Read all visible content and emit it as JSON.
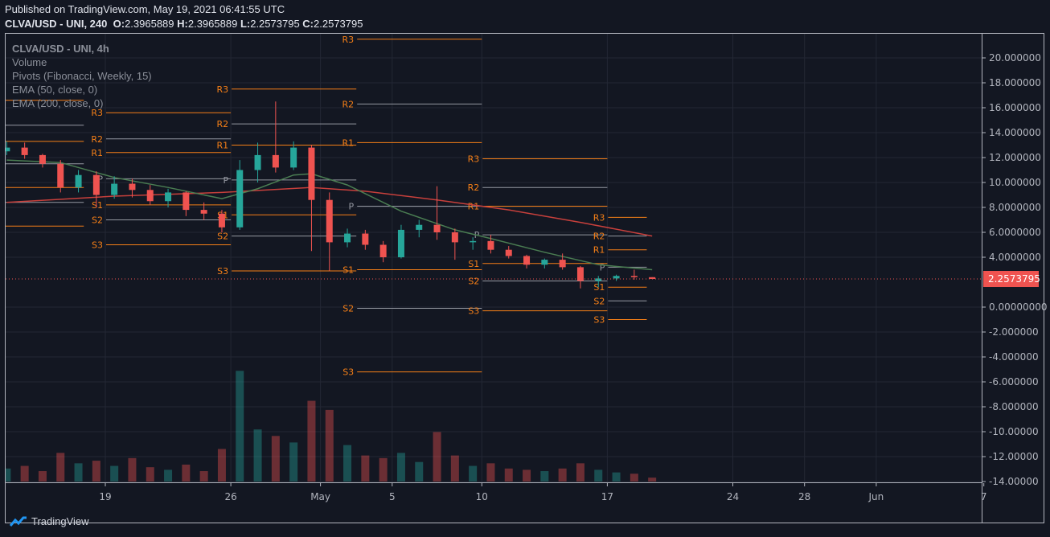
{
  "header": {
    "published": "Published on TradingView.com, May 19, 2021 06:41:55 UTC",
    "symbol": "CLVA/USD - UNI, 240",
    "o_label": "O:",
    "o": "2.3965889",
    "h_label": "H:",
    "h": "2.3965889",
    "l_label": "L:",
    "l": "2.2573795",
    "c_label": "C:",
    "c": "2.2573795"
  },
  "legend": [
    "CLVA/USD - UNI, 4h",
    "Volume",
    "Pivots (Fibonacci, Weekly, 15)",
    "EMA (50, close, 0)",
    "EMA (200, close, 0)"
  ],
  "footer": {
    "brand": "TradingView"
  },
  "colors": {
    "up": "#26a69a",
    "down": "#ef5350",
    "pivot": "#f57f17",
    "ema50": "#4a7d52",
    "ema200": "#c8403c",
    "last_price_bg": "#ef5350",
    "background": "#131722"
  },
  "chart_data": {
    "type": "candlestick",
    "title": "CLVA/USD - UNI, 4h",
    "ylim": [
      -14,
      22
    ],
    "y_ticks": [
      "20.000000",
      "18.000000",
      "16.000000",
      "14.000000",
      "12.000000",
      "10.000000",
      "8.0000000",
      "6.0000000",
      "4.0000000",
      "0.00000000",
      "-2.000000",
      "-4.000000",
      "-6.000000",
      "-8.000000",
      "-10.00000",
      "-12.00000",
      "-14.00000"
    ],
    "y_tick_values": [
      20,
      18,
      16,
      14,
      12,
      10,
      8,
      6,
      4,
      0,
      -2,
      -4,
      -6,
      -8,
      -10,
      -12,
      -14
    ],
    "last_price": "2.2573795",
    "last_price_value": 2.2573795,
    "x_ticks": [
      {
        "label": "19",
        "day": 0
      },
      {
        "label": "26",
        "day": 7
      },
      {
        "label": "May",
        "day": 12
      },
      {
        "label": "5",
        "day": 16
      },
      {
        "label": "10",
        "day": 21
      },
      {
        "label": "17",
        "day": 28
      },
      {
        "label": "24",
        "day": 35
      },
      {
        "label": "28",
        "day": 39
      },
      {
        "label": "Jun",
        "day": 43
      },
      {
        "label": "7",
        "day": 49
      }
    ],
    "x_unit": "days since Apr 19 2021",
    "candles_day_o_h_l_c_vol": [
      [
        -6,
        12.5,
        13.3,
        12.2,
        12.8,
        10
      ],
      [
        -5,
        12.8,
        13.2,
        11.9,
        12.2,
        12
      ],
      [
        -4,
        12.2,
        12.3,
        11.2,
        11.5,
        8
      ],
      [
        -3,
        11.5,
        11.8,
        9.2,
        9.6,
        22
      ],
      [
        -2,
        9.6,
        11.0,
        9.2,
        10.6,
        14
      ],
      [
        -1,
        10.6,
        10.9,
        8.0,
        9.0,
        16
      ],
      [
        0,
        9.0,
        10.5,
        8.7,
        9.9,
        12
      ],
      [
        1,
        9.9,
        10.3,
        8.8,
        9.4,
        18
      ],
      [
        2,
        9.4,
        9.8,
        8.2,
        8.5,
        11
      ],
      [
        3,
        8.5,
        9.5,
        8.0,
        9.2,
        9
      ],
      [
        4,
        9.2,
        9.3,
        7.3,
        7.8,
        13
      ],
      [
        5,
        7.8,
        8.4,
        7.0,
        7.5,
        8
      ],
      [
        6,
        7.5,
        7.8,
        6.0,
        6.4,
        25
      ],
      [
        7,
        6.4,
        11.8,
        6.2,
        11.0,
        85
      ],
      [
        8,
        11.0,
        13.2,
        10.0,
        12.2,
        40
      ],
      [
        9,
        12.2,
        16.5,
        10.8,
        11.2,
        35
      ],
      [
        10,
        11.2,
        13.3,
        11.0,
        12.8,
        30
      ],
      [
        11,
        12.8,
        13.0,
        4.5,
        8.6,
        62
      ],
      [
        12,
        8.6,
        9.2,
        2.9,
        5.2,
        55
      ],
      [
        13,
        5.2,
        6.3,
        4.8,
        5.9,
        28
      ],
      [
        14,
        5.9,
        6.2,
        4.6,
        5.0,
        20
      ],
      [
        15,
        5.0,
        5.3,
        3.6,
        4.0,
        18
      ],
      [
        16,
        4.0,
        6.6,
        3.9,
        6.2,
        22
      ],
      [
        17,
        6.2,
        7.0,
        5.6,
        6.6,
        15
      ],
      [
        18,
        6.6,
        9.7,
        5.4,
        6.0,
        38
      ],
      [
        19,
        6.0,
        6.3,
        3.8,
        5.2,
        20
      ],
      [
        20,
        5.2,
        5.6,
        4.6,
        5.3,
        12
      ],
      [
        21,
        5.3,
        5.8,
        4.3,
        4.6,
        14
      ],
      [
        22,
        4.6,
        4.9,
        3.9,
        4.1,
        10
      ],
      [
        23,
        4.1,
        4.2,
        3.1,
        3.4,
        9
      ],
      [
        24,
        3.4,
        3.9,
        3.1,
        3.8,
        8
      ],
      [
        25,
        3.8,
        4.3,
        3.0,
        3.2,
        10
      ],
      [
        26,
        3.2,
        3.3,
        1.5,
        2.1,
        14
      ],
      [
        27,
        2.1,
        2.5,
        1.6,
        2.3,
        9
      ],
      [
        28,
        2.3,
        2.6,
        2.1,
        2.5,
        7
      ],
      [
        29,
        2.5,
        3.0,
        2.2,
        2.4,
        6
      ],
      [
        30,
        2.4,
        2.4,
        2.26,
        2.2573795,
        3
      ]
    ],
    "ema50": [
      [
        -6,
        11.8
      ],
      [
        -3,
        11.6
      ],
      [
        0,
        10.4
      ],
      [
        3,
        9.6
      ],
      [
        6,
        8.7
      ],
      [
        8,
        9.5
      ],
      [
        10,
        10.6
      ],
      [
        11,
        10.7
      ],
      [
        13,
        9.8
      ],
      [
        16,
        7.7
      ],
      [
        19,
        6.2
      ],
      [
        21,
        5.5
      ],
      [
        24,
        4.4
      ],
      [
        27,
        3.4
      ],
      [
        30,
        3.0
      ]
    ],
    "ema200": [
      [
        -6,
        8.4
      ],
      [
        0,
        8.9
      ],
      [
        6,
        9.2
      ],
      [
        11,
        9.6
      ],
      [
        14,
        9.3
      ],
      [
        18,
        8.6
      ],
      [
        22,
        7.8
      ],
      [
        26,
        6.8
      ],
      [
        30,
        5.7
      ]
    ],
    "pivot_labels": [
      "R3",
      "R2",
      "R1",
      "P",
      "S1",
      "S2",
      "S3"
    ],
    "pivots": [
      {
        "start_day": -7,
        "end_day": -1.2,
        "levels": [
          16.6,
          14.6,
          13.3,
          11.5,
          9.6,
          8.4,
          6.5
        ]
      },
      {
        "start_day": 0,
        "end_day": 7,
        "levels": [
          15.6,
          13.5,
          12.4,
          10.3,
          8.2,
          7.0,
          5.0
        ]
      },
      {
        "start_day": 7,
        "end_day": 14,
        "levels": [
          17.5,
          14.7,
          13.0,
          10.2,
          7.4,
          5.7,
          2.9
        ]
      },
      {
        "start_day": 14,
        "end_day": 21,
        "levels": [
          21.5,
          16.3,
          13.2,
          8.1,
          3.0,
          -0.1,
          -5.2
        ]
      },
      {
        "start_day": 21,
        "end_day": 28,
        "levels": [
          11.9,
          9.6,
          8.1,
          5.8,
          3.5,
          2.1,
          -0.3
        ]
      },
      {
        "start_day": 28,
        "end_day": 30.2,
        "levels": [
          7.2,
          5.7,
          4.6,
          3.2,
          1.6,
          0.5,
          -1.0
        ]
      }
    ]
  }
}
